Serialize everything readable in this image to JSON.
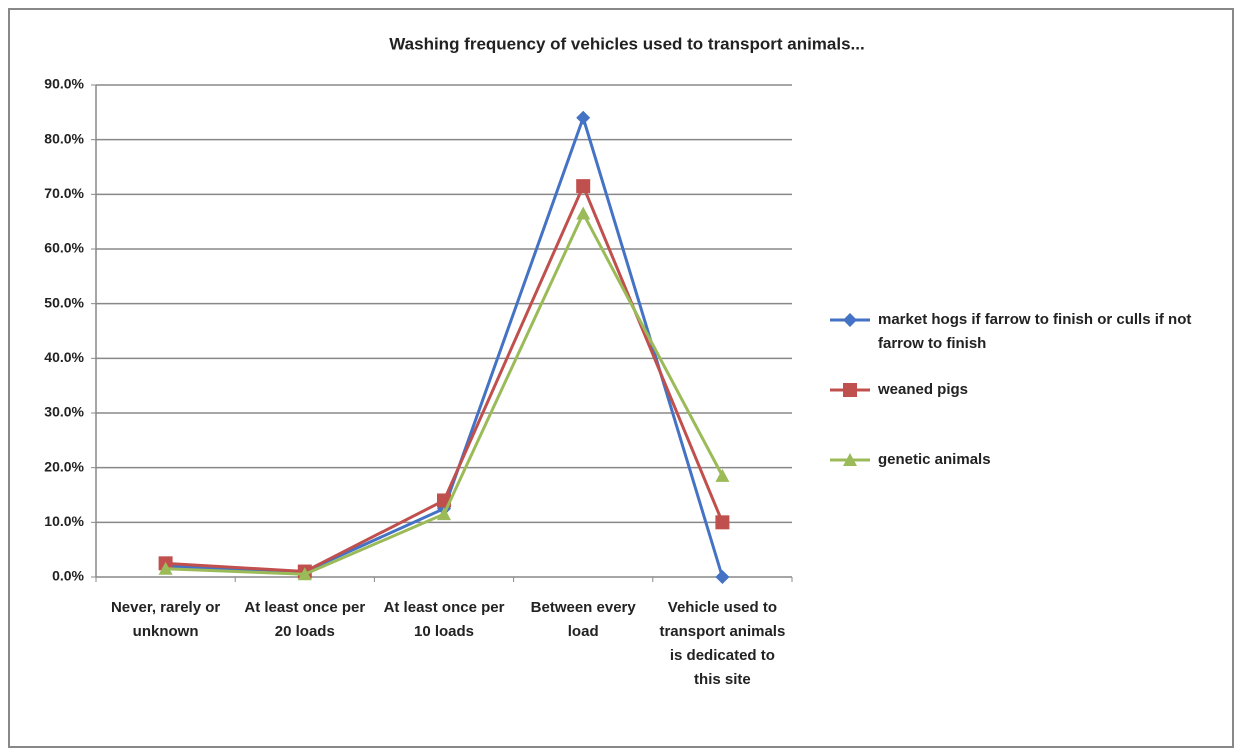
{
  "chart_data": {
    "type": "line",
    "title": "Washing frequency of vehicles used to transport  animals...",
    "categories": [
      "Never, rarely or unknown",
      "At least once per 20 loads",
      "At least once per 10 loads",
      "Between every load",
      "Vehicle used to transport animals is dedicated to this site"
    ],
    "series": [
      {
        "name": "market hogs if farrow to finish or culls if not farrow to finish",
        "color": "#4472c4",
        "marker": "diamond",
        "values": [
          2.0,
          1.0,
          12.5,
          84.0,
          0.0
        ]
      },
      {
        "name": "weaned pigs",
        "color": "#c0504d",
        "marker": "square",
        "values": [
          2.5,
          1.0,
          14.0,
          71.5,
          10.0
        ]
      },
      {
        "name": "genetic animals",
        "color": "#9bbb59",
        "marker": "triangle",
        "values": [
          1.5,
          0.5,
          11.5,
          66.5,
          18.5
        ]
      }
    ],
    "ylim": [
      0,
      90
    ],
    "yticks": [
      {
        "value": 0,
        "label": "0.0%"
      },
      {
        "value": 10,
        "label": "10.0%"
      },
      {
        "value": 20,
        "label": "20.0%"
      },
      {
        "value": 30,
        "label": "30.0%"
      },
      {
        "value": 40,
        "label": "40.0%"
      },
      {
        "value": 50,
        "label": "50.0%"
      },
      {
        "value": 60,
        "label": "60.0%"
      },
      {
        "value": 70,
        "label": "70.0%"
      },
      {
        "value": 80,
        "label": "80.0%"
      },
      {
        "value": 90,
        "label": "90.0%"
      }
    ],
    "grid": true,
    "legend": "right"
  }
}
